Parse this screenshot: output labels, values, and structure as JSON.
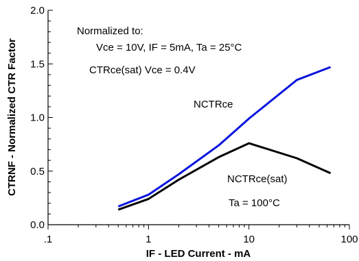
{
  "chart_data": {
    "type": "line",
    "xlabel": "IF  -  LED Current - mA",
    "ylabel": "CTRNF - Normalized CTR Factor",
    "x_scale": "log",
    "xlim": [
      0.1,
      100
    ],
    "ylim": [
      0.0,
      2.0
    ],
    "x_ticks": [
      {
        "value": 0.1,
        "label": ".1"
      },
      {
        "value": 1,
        "label": "1"
      },
      {
        "value": 10,
        "label": "10"
      },
      {
        "value": 100,
        "label": "100"
      }
    ],
    "y_ticks": [
      {
        "value": 0.0,
        "label": "0.0"
      },
      {
        "value": 0.5,
        "label": "0.5"
      },
      {
        "value": 1.0,
        "label": "1.0"
      },
      {
        "value": 1.5,
        "label": "1.5"
      },
      {
        "value": 2.0,
        "label": "2.0"
      }
    ],
    "grid": false,
    "series": [
      {
        "name": "NCTRce",
        "color": "#0a14dc",
        "points": [
          [
            0.5,
            0.17
          ],
          [
            1,
            0.28
          ],
          [
            2,
            0.47
          ],
          [
            5,
            0.74
          ],
          [
            10,
            0.99
          ],
          [
            30,
            1.35
          ],
          [
            65,
            1.47
          ]
        ]
      },
      {
        "name": "NCTRce(sat)",
        "color": "#000000",
        "points": [
          [
            0.5,
            0.14
          ],
          [
            1,
            0.24
          ],
          [
            2,
            0.42
          ],
          [
            5,
            0.63
          ],
          [
            10,
            0.76
          ],
          [
            30,
            0.62
          ],
          [
            65,
            0.48
          ]
        ]
      }
    ],
    "annotations": {
      "normalized_line1": "Normalized to:",
      "normalized_line2": "Vce = 10V, IF = 5mA, Ta = 25°C",
      "sat_condition": "CTRce(sat) Vce = 0.4V",
      "series_label_1": "NCTRce",
      "series_label_2": "NCTRce(sat)",
      "temperature": "Ta = 100°C"
    }
  }
}
